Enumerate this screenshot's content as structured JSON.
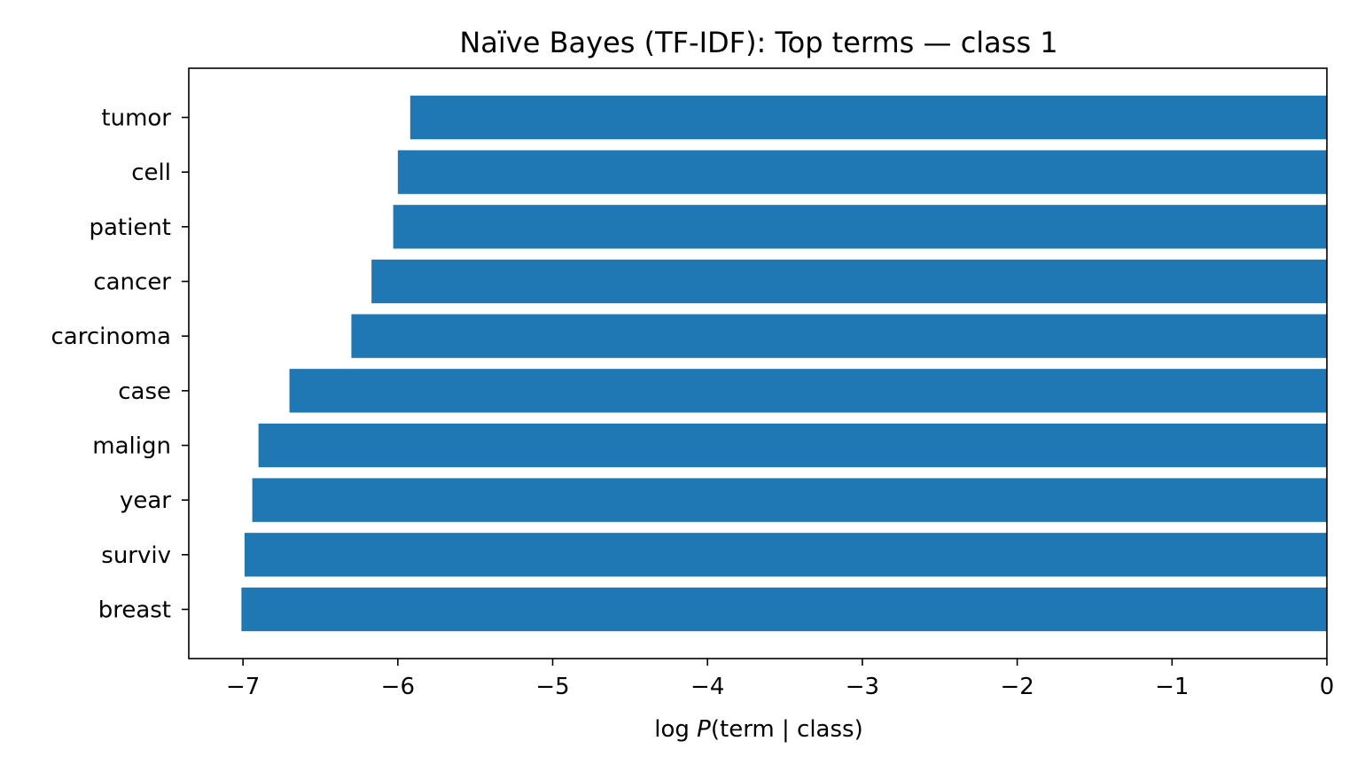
{
  "chart_data": {
    "type": "bar",
    "orientation": "horizontal",
    "title": "Naïve Bayes (TF-IDF): Top terms — class 1",
    "xlabel": "log P(term | class)",
    "xlabel_parts": {
      "prefix": "log ",
      "italic": "P",
      "suffix": "(term | class)"
    },
    "ylabel": "",
    "categories": [
      "tumor",
      "cell",
      "patient",
      "cancer",
      "carcinoma",
      "case",
      "malign",
      "year",
      "surviv",
      "breast"
    ],
    "values": [
      -5.92,
      -6.0,
      -6.03,
      -6.17,
      -6.3,
      -6.7,
      -6.9,
      -6.94,
      -6.99,
      -7.01
    ],
    "xlim": [
      -7.35,
      0
    ],
    "xticks": [
      -7,
      -6,
      -5,
      -4,
      -3,
      -2,
      -1,
      0
    ],
    "xtick_labels": [
      "−7",
      "−6",
      "−5",
      "−4",
      "−3",
      "−2",
      "−1",
      "0"
    ],
    "grid": false,
    "legend": "none",
    "bar_color": "#1f77b4"
  }
}
